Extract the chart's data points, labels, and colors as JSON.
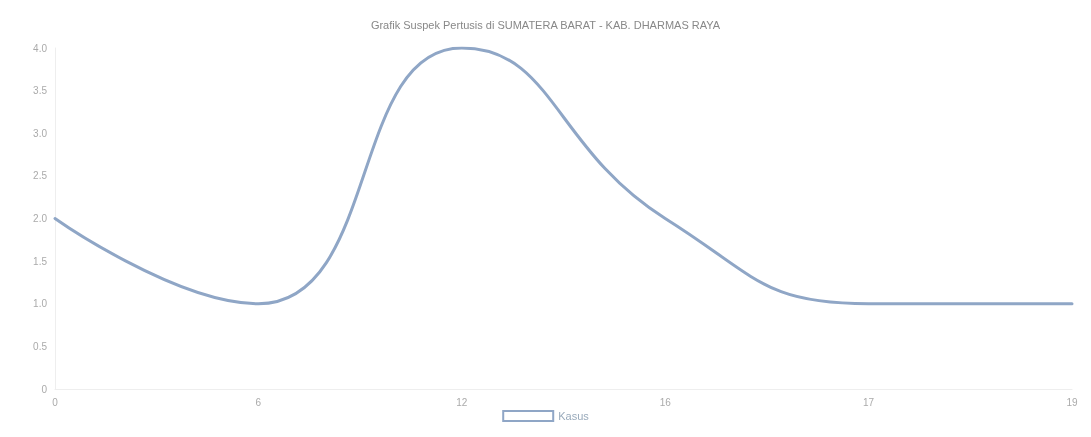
{
  "chart_data": {
    "type": "line",
    "title": "Grafik Suspek Pertusis di SUMATERA BARAT - KAB. DHARMAS RAYA",
    "categories": [
      "0",
      "6",
      "12",
      "16",
      "17",
      "19"
    ],
    "series": [
      {
        "name": "Kasus",
        "color": "#8fa6c6",
        "values": [
          2,
          1,
          4,
          2,
          1,
          1
        ]
      }
    ],
    "ylim": [
      0,
      4
    ],
    "yticks": [
      {
        "value": 0,
        "label": "0"
      },
      {
        "value": 0.5,
        "label": "0.5"
      },
      {
        "value": 1,
        "label": "1.0"
      },
      {
        "value": 1.5,
        "label": "1.5"
      },
      {
        "value": 2,
        "label": "2.0"
      },
      {
        "value": 2.5,
        "label": "2.5"
      },
      {
        "value": 3,
        "label": "3.0"
      },
      {
        "value": 3.5,
        "label": "3.5"
      },
      {
        "value": 4,
        "label": "4.0"
      }
    ],
    "grid": false,
    "legend": "bottom",
    "marker": "none",
    "line_style": "solid"
  }
}
